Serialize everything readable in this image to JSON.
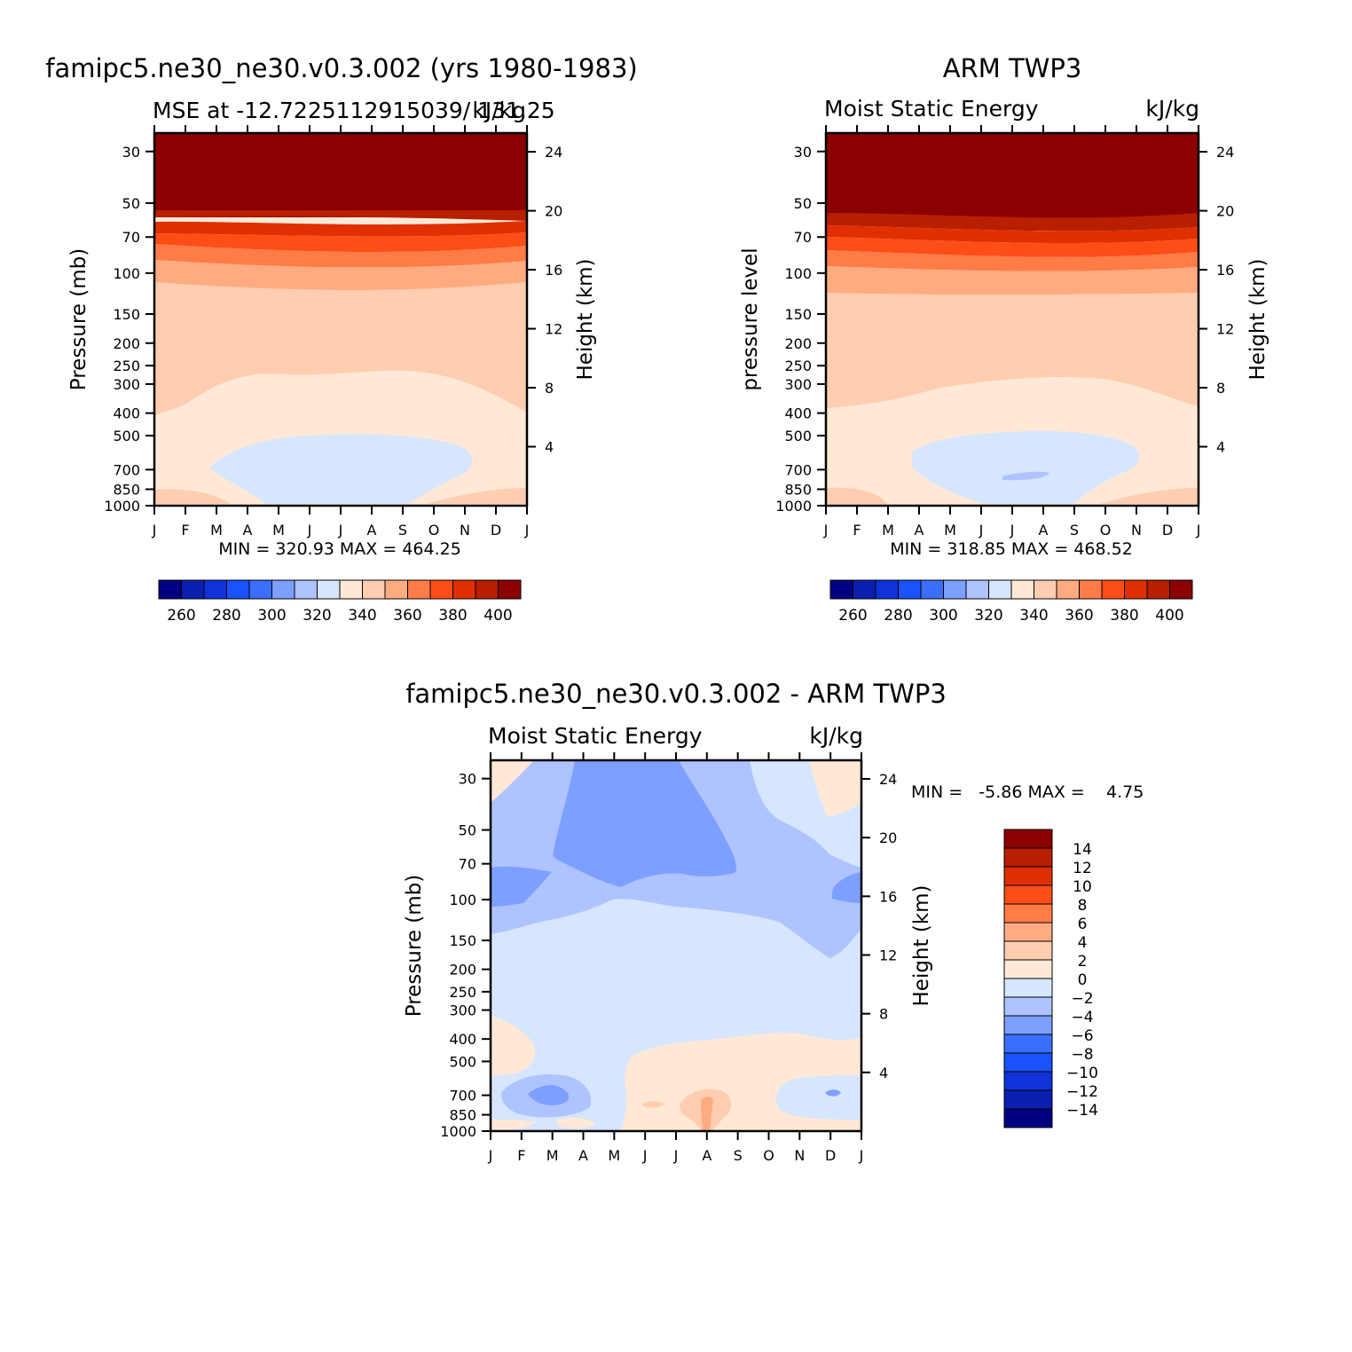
{
  "colors": {
    "levels": [
      "#000080",
      "#0a1fb0",
      "#0f33d9",
      "#1a52ff",
      "#3a6fff",
      "#7d9fff",
      "#aec3ff",
      "#d6e6ff",
      "#ffe9d6",
      "#ffcdb0",
      "#ffab82",
      "#ff7c47",
      "#ff4d17",
      "#e02f00",
      "#b81e00",
      "#8b0000"
    ],
    "axis": "#000000"
  },
  "chart_data": [
    {
      "type": "heatmap",
      "title": "famipc5.ne30_ne30.v0.3.002 (yrs 1980-1983)",
      "subtitle_left": "MSE at -12.7225112915039/ 131.25",
      "subtitle_right": "kJ/kg",
      "ylabel": "Pressure (mb)",
      "ylabel_right": "Height (km)",
      "x_ticks": [
        "J",
        "F",
        "M",
        "A",
        "M",
        "J",
        "J",
        "A",
        "S",
        "O",
        "N",
        "D",
        "J"
      ],
      "y_ticks": [
        "30",
        "50",
        "70",
        "100",
        "150",
        "200",
        "250",
        "300",
        "400",
        "500",
        "700",
        "850",
        "1000"
      ],
      "y_ticks_right": [
        "24",
        "20",
        "16",
        "12",
        "8",
        "4"
      ],
      "min_label": "MIN = 320.93 MAX = 464.25",
      "colorbar_labels": [
        "260",
        "280",
        "300",
        "320",
        "340",
        "360",
        "380",
        "400"
      ],
      "levels_note": "bands: >400, 390-400, 380-390, 370-380, 360-370, 350-360, 340-350, 330-340, 320-330",
      "band_boundaries_pressure": [
        {
          "upper_level": 400,
          "pressure": [
            56,
            56,
            56,
            57,
            58,
            60,
            60,
            60,
            60,
            60,
            59,
            57,
            56
          ]
        },
        {
          "upper_level": 390,
          "pressure": [
            63,
            63,
            63,
            64,
            66,
            68,
            69,
            69,
            69,
            68,
            66,
            64,
            63
          ]
        },
        {
          "upper_level": 380,
          "pressure": [
            72,
            72,
            72,
            73,
            75,
            77,
            78,
            78,
            78,
            77,
            75,
            73,
            72
          ]
        },
        {
          "upper_level": 370,
          "pressure": [
            90,
            90,
            90,
            92,
            96,
            99,
            100,
            100,
            100,
            98,
            95,
            92,
            90
          ]
        },
        {
          "upper_level": 360,
          "pressure": [
            122,
            124,
            126,
            128,
            130,
            132,
            133,
            133,
            132,
            130,
            128,
            125,
            122
          ]
        },
        {
          "upper_level": 350,
          "pressure": [
            420,
            390,
            310,
            270,
            275,
            275,
            270,
            265,
            270,
            285,
            320,
            375,
            420
          ]
        },
        {
          "upper_level": 340,
          "pressure": [
            1000,
            1000,
            700,
            535,
            520,
            520,
            510,
            510,
            515,
            535,
            700,
            1000,
            1000
          ]
        },
        {
          "upper_level": 330,
          "pressure": [
            1000,
            1000,
            1000,
            800,
            1000,
            1000,
            1000,
            1000,
            1000,
            820,
            1000,
            1000,
            1000
          ]
        }
      ]
    },
    {
      "type": "heatmap",
      "title": "ARM TWP3",
      "subtitle_left": "Moist Static Energy",
      "subtitle_right": "kJ/kg",
      "ylabel": "pressure level",
      "ylabel_right": "Height (km)",
      "x_ticks": [
        "J",
        "F",
        "M",
        "A",
        "M",
        "J",
        "J",
        "A",
        "S",
        "O",
        "N",
        "D",
        "J"
      ],
      "y_ticks": [
        "30",
        "50",
        "70",
        "100",
        "150",
        "200",
        "250",
        "300",
        "400",
        "500",
        "700",
        "850",
        "1000"
      ],
      "y_ticks_right": [
        "24",
        "20",
        "16",
        "12",
        "8",
        "4"
      ],
      "min_label": "MIN = 318.85 MAX = 468.52",
      "colorbar_labels": [
        "260",
        "280",
        "300",
        "320",
        "340",
        "360",
        "380",
        "400"
      ],
      "band_boundaries_pressure": [
        {
          "upper_level": 400,
          "pressure": [
            56,
            56,
            57,
            58,
            60,
            62,
            63,
            63,
            63,
            62,
            60,
            58,
            56
          ]
        },
        {
          "upper_level": 390,
          "pressure": [
            63,
            63,
            64,
            66,
            68,
            70,
            71,
            71,
            70,
            69,
            67,
            65,
            63
          ]
        },
        {
          "upper_level": 380,
          "pressure": [
            72,
            72,
            73,
            75,
            77,
            80,
            81,
            81,
            80,
            79,
            76,
            74,
            72
          ]
        },
        {
          "upper_level": 370,
          "pressure": [
            88,
            89,
            90,
            92,
            95,
            98,
            99,
            99,
            98,
            96,
            93,
            90,
            88
          ]
        },
        {
          "upper_level": 360,
          "pressure": [
            125,
            126,
            127,
            128,
            130,
            131,
            132,
            132,
            131,
            130,
            128,
            126,
            125
          ]
        },
        {
          "upper_level": 350,
          "pressure": [
            390,
            385,
            370,
            330,
            325,
            310,
            300,
            295,
            300,
            310,
            330,
            375,
            390
          ]
        },
        {
          "upper_level": 340,
          "pressure": [
            1000,
            1000,
            1000,
            600,
            520,
            500,
            500,
            500,
            500,
            520,
            600,
            1000,
            1000
          ]
        },
        {
          "upper_level": 330,
          "pressure": [
            1000,
            1000,
            1000,
            1000,
            1000,
            760,
            740,
            740,
            1000,
            1000,
            1000,
            1000,
            1000
          ]
        }
      ]
    },
    {
      "type": "heatmap",
      "title": "famipc5.ne30_ne30.v0.3.002 - ARM TWP3",
      "subtitle_left": "Moist Static Energy",
      "subtitle_right": "kJ/kg",
      "ylabel": "Pressure (mb)",
      "ylabel_right": "Height (km)",
      "x_ticks": [
        "J",
        "F",
        "M",
        "A",
        "M",
        "J",
        "J",
        "A",
        "S",
        "O",
        "N",
        "D",
        "J"
      ],
      "y_ticks": [
        "30",
        "50",
        "70",
        "100",
        "150",
        "200",
        "250",
        "300",
        "400",
        "500",
        "700",
        "850",
        "1000"
      ],
      "y_ticks_right": [
        "24",
        "20",
        "16",
        "12",
        "8",
        "4"
      ],
      "min_label": "MIN =   -5.86 MAX =    4.75",
      "colorbar_labels": [
        "14",
        "12",
        "10",
        "8",
        "6",
        "4",
        "2",
        "0",
        "−2",
        "−4",
        "−6",
        "−8",
        "−10",
        "−12",
        "−14"
      ],
      "dominant_band": "-2 to 0 from 150 to 400 mb; -6 to -4 core Mar-Aug above 70 mb; 0 to 2 below 500 mb from May to Sep"
    }
  ]
}
